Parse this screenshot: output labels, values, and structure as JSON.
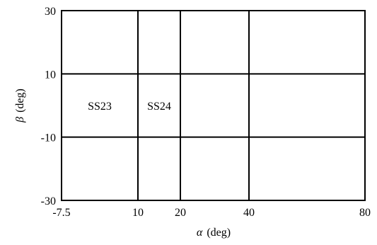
{
  "diagram": {
    "x_axis": {
      "label_symbol": "α",
      "label_unit": "(deg)",
      "range": [
        -7.5,
        80
      ],
      "ticks": [
        {
          "value": -7.5,
          "label": "-7.5"
        },
        {
          "value": 10,
          "label": "10"
        },
        {
          "value": 20,
          "label": "20"
        },
        {
          "value": 40,
          "label": "40"
        },
        {
          "value": 80,
          "label": "80"
        }
      ]
    },
    "y_axis": {
      "label_symbol": "β",
      "label_unit": "(deg)",
      "range": [
        -30,
        30
      ],
      "ticks": [
        {
          "value": 30,
          "label": "30"
        },
        {
          "value": 10,
          "label": "10"
        },
        {
          "value": -10,
          "label": "-10"
        },
        {
          "value": -30,
          "label": "-30"
        }
      ]
    },
    "boundaries": {
      "alpha": [
        10,
        20,
        40
      ],
      "beta": [
        10,
        -10
      ]
    },
    "regions": [
      {
        "label": "SS23",
        "alpha_range": [
          -7.5,
          10
        ],
        "beta_range": [
          -10,
          10
        ]
      },
      {
        "label": "SS24",
        "alpha_range": [
          10,
          20
        ],
        "beta_range": [
          -10,
          10
        ]
      }
    ]
  }
}
